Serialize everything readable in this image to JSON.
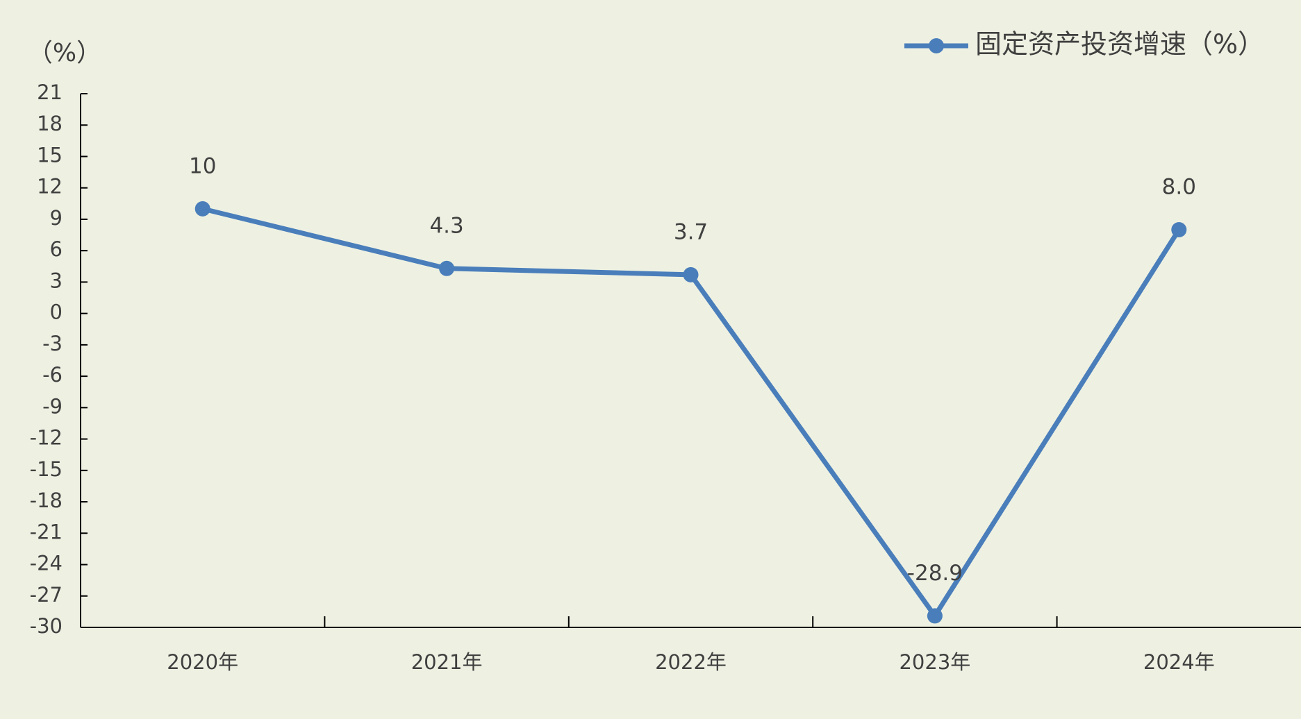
{
  "chart_data": {
    "type": "line",
    "y_axis_label": "（%）",
    "categories": [
      "2020年",
      "2021年",
      "2022年",
      "2023年",
      "2024年"
    ],
    "series": [
      {
        "name": "固定资产投资增速（%）",
        "color": "#4a7ebb",
        "values": [
          10,
          4.3,
          3.7,
          -28.9,
          8.0
        ],
        "value_labels": [
          "10",
          "4.3",
          "3.7",
          "-28.9",
          "8.0"
        ]
      }
    ],
    "ylim": [
      -30,
      21
    ],
    "yticks": [
      21,
      18,
      15,
      12,
      9,
      6,
      3,
      0,
      -3,
      -6,
      -9,
      -12,
      -15,
      -18,
      -21,
      -24,
      -27,
      -30
    ],
    "legend": "top-right"
  }
}
